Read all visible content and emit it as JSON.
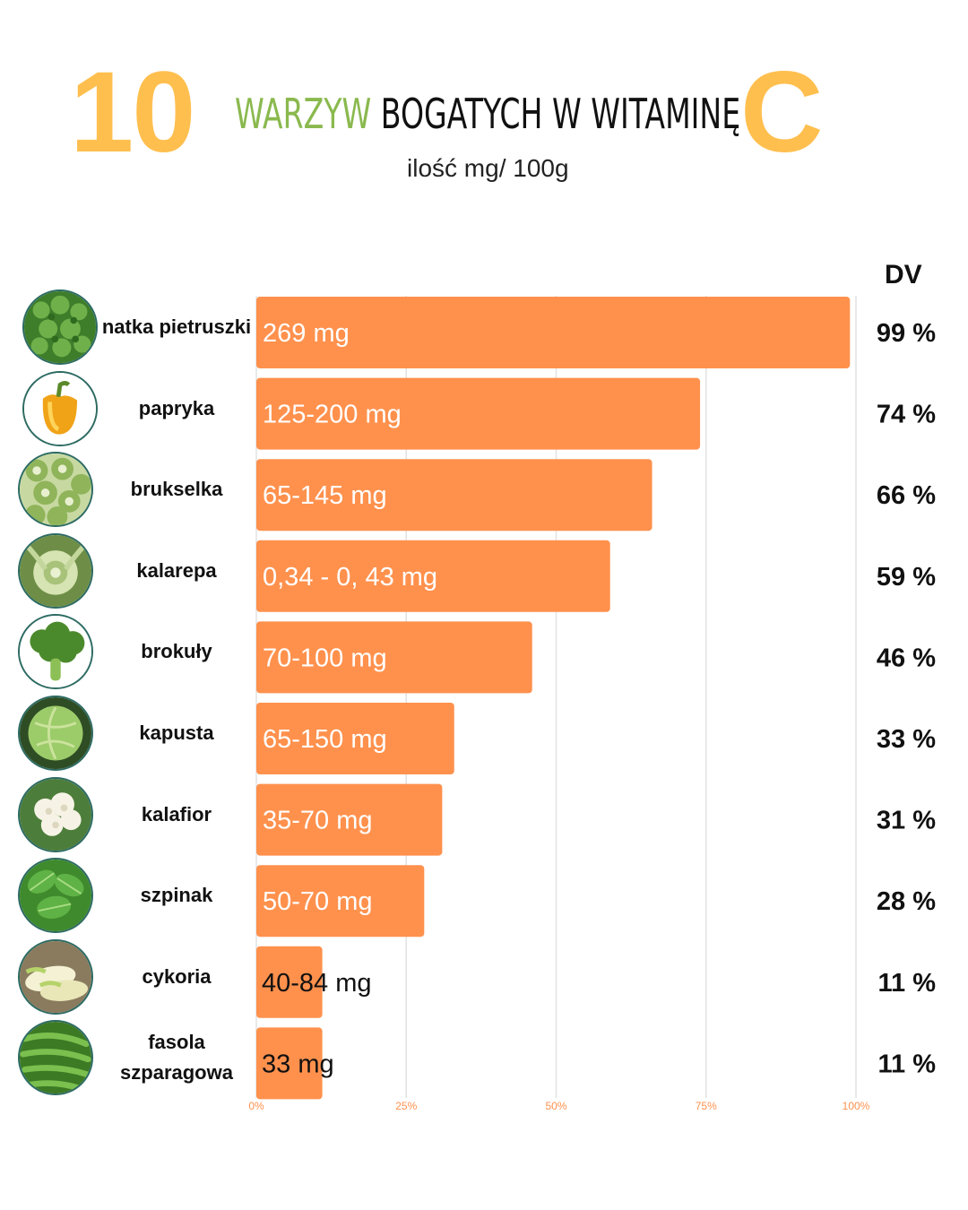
{
  "header": {
    "number": "10",
    "title_green": "WARZYW",
    "title_black": "BOGATYCH W WITAMINĘ",
    "letter": "C",
    "subtitle": "ilość mg/ 100g",
    "dv_label": "DV"
  },
  "colors": {
    "bar": "#ff914d",
    "accent_yellow": "#ffbf4f",
    "accent_green": "#8ab94e",
    "circle_border": "#2d6b63"
  },
  "chart_data": {
    "type": "bar",
    "orientation": "horizontal",
    "xlim": [
      0,
      100
    ],
    "x_ticks": [
      "0%",
      "25%",
      "50%",
      "75%",
      "100%"
    ],
    "grid": true,
    "categories": [
      "natka pietruszki",
      "papryka",
      "brukselka",
      "kalarepa",
      "brokuły",
      "kapusta",
      "kalafior",
      "szpinak",
      "cykoria",
      "fasola szparagowa"
    ],
    "values": [
      99,
      74,
      66,
      59,
      46,
      33,
      31,
      28,
      11,
      11
    ],
    "bar_labels": [
      "269 mg",
      "125-200 mg",
      "65-145 mg",
      "0,34 - 0, 43 mg",
      "70-100 mg",
      "65-150 mg",
      "35-70 mg",
      "50-70 mg",
      "40-84 mg",
      "33 mg"
    ],
    "dv_labels": [
      "99 %",
      "74 %",
      "66 %",
      "59 %",
      "46 %",
      "33 %",
      "31 %",
      "28 %",
      "11 %",
      "11 %"
    ]
  },
  "icons": [
    "parsley-icon",
    "pepper-icon",
    "brussels-sprouts-icon",
    "kohlrabi-icon",
    "broccoli-icon",
    "cabbage-icon",
    "cauliflower-icon",
    "spinach-icon",
    "chicory-icon",
    "green-beans-icon"
  ]
}
